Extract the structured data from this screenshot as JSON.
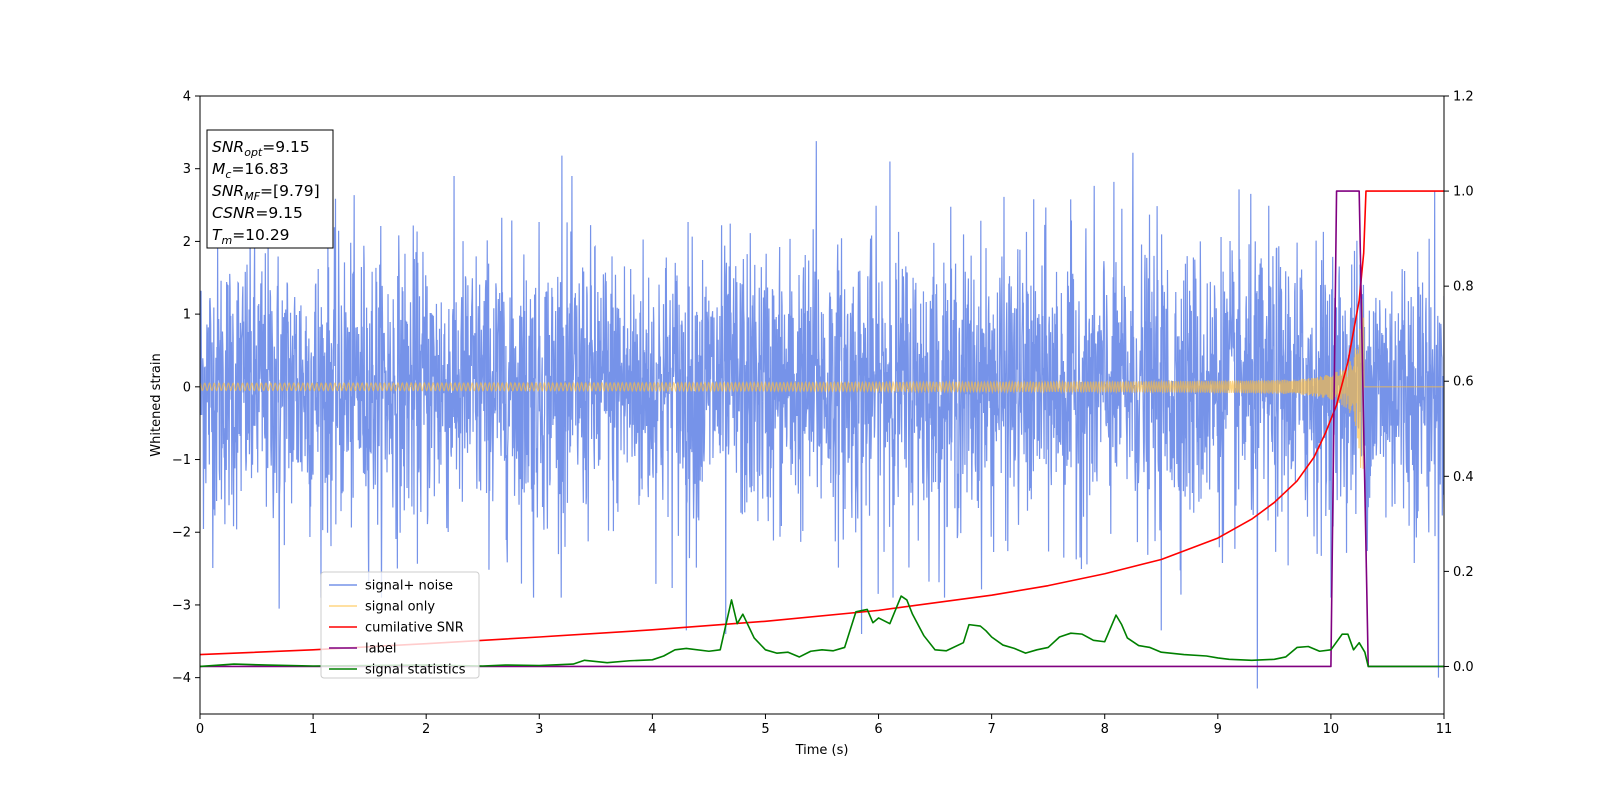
{
  "chart_data": {
    "type": "line",
    "xlabel": "Time (s)",
    "ylabel": "Whitened strain",
    "xlim": [
      0,
      11
    ],
    "ylim": [
      -4.5,
      4
    ],
    "y2lim": [
      -0.1,
      1.2
    ],
    "xticks": [
      "0",
      "1",
      "2",
      "3",
      "4",
      "5",
      "6",
      "7",
      "8",
      "9",
      "10",
      "11"
    ],
    "yticks": [
      "−4",
      "−3",
      "−2",
      "−1",
      "0",
      "1",
      "2",
      "3",
      "4"
    ],
    "y2ticks": [
      "0.0",
      "0.2",
      "0.4",
      "0.6",
      "0.8",
      "1.0",
      "1.2"
    ],
    "grid": false,
    "legend_position": "lower-left",
    "annotation": {
      "lines": [
        {
          "label": "SNR",
          "sub": "opt",
          "value": "=9.15"
        },
        {
          "label": "M",
          "sub": "c",
          "value": "=16.83"
        },
        {
          "label": "SNR",
          "sub": "MF",
          "value": "=[9.79]"
        },
        {
          "label": "CSNR",
          "sub": "",
          "value": "=9.15"
        },
        {
          "label": "T",
          "sub": "m",
          "value": "=10.29"
        }
      ]
    },
    "series": [
      {
        "name": "signal+ noise",
        "axis": "left",
        "color": "#4169e1",
        "kind": "noise",
        "sigma": 0.95,
        "x_range": [
          0,
          11
        ],
        "peaks": [
          [
            5.45,
            3.38
          ],
          [
            3.2,
            3.18
          ],
          [
            6.1,
            3.1
          ],
          [
            8.25,
            3.22
          ],
          [
            10.95,
            3.1
          ],
          [
            9.35,
            -4.15
          ],
          [
            10.95,
            -4.0
          ],
          [
            4.3,
            -3.35
          ],
          [
            8.5,
            -3.35
          ],
          [
            5.85,
            -3.4
          ],
          [
            0.7,
            -3.05
          ],
          [
            4.65,
            -3.4
          ],
          [
            2.95,
            -2.9
          ]
        ]
      },
      {
        "name": "signal only",
        "axis": "left",
        "color": "#ffbf3f",
        "kind": "chirp",
        "amplitude": 0.05,
        "merger": 10.29,
        "peak_amplitude": 1.4,
        "x_range": [
          0,
          11
        ]
      },
      {
        "name": "cumilative SNR",
        "axis": "right",
        "color": "#ff0000",
        "x": [
          0,
          1,
          2,
          3,
          4,
          5,
          6,
          7,
          7.5,
          8,
          8.5,
          9,
          9.3,
          9.5,
          9.7,
          9.85,
          9.95,
          10.05,
          10.15,
          10.25,
          10.29,
          10.31,
          11
        ],
        "y": [
          0.025,
          0.035,
          0.048,
          0.062,
          0.077,
          0.095,
          0.118,
          0.15,
          0.17,
          0.195,
          0.225,
          0.27,
          0.31,
          0.345,
          0.39,
          0.44,
          0.49,
          0.55,
          0.64,
          0.77,
          0.87,
          1.0,
          1.0
        ]
      },
      {
        "name": "label",
        "axis": "right",
        "color": "#800080",
        "x": [
          0,
          10.0,
          10.05,
          10.25,
          10.33,
          11
        ],
        "y": [
          0.0,
          0.0,
          1.0,
          1.0,
          0.0,
          0.0
        ]
      },
      {
        "name": "signal statistics",
        "axis": "right",
        "color": "#008000",
        "x": [
          0,
          0.3,
          0.6,
          1.0,
          1.5,
          2.0,
          2.5,
          2.7,
          3.0,
          3.3,
          3.4,
          3.6,
          3.8,
          4.0,
          4.1,
          4.2,
          4.3,
          4.5,
          4.6,
          4.7,
          4.75,
          4.8,
          4.9,
          5.0,
          5.1,
          5.2,
          5.3,
          5.4,
          5.5,
          5.6,
          5.7,
          5.8,
          5.9,
          5.95,
          6.0,
          6.1,
          6.2,
          6.25,
          6.3,
          6.4,
          6.5,
          6.6,
          6.75,
          6.8,
          6.9,
          6.95,
          7.0,
          7.1,
          7.2,
          7.3,
          7.4,
          7.5,
          7.6,
          7.7,
          7.8,
          7.9,
          8.0,
          8.1,
          8.15,
          8.2,
          8.3,
          8.4,
          8.5,
          8.7,
          8.9,
          9.0,
          9.1,
          9.3,
          9.5,
          9.6,
          9.7,
          9.8,
          9.9,
          10.0,
          10.1,
          10.15,
          10.2,
          10.25,
          10.3,
          10.33,
          10.5,
          11.0
        ],
        "y": [
          0.0,
          0.005,
          0.003,
          0.001,
          0.002,
          0.003,
          0.001,
          0.003,
          0.002,
          0.005,
          0.013,
          0.008,
          0.012,
          0.014,
          0.022,
          0.035,
          0.038,
          0.032,
          0.035,
          0.14,
          0.09,
          0.11,
          0.06,
          0.035,
          0.028,
          0.03,
          0.02,
          0.032,
          0.035,
          0.033,
          0.04,
          0.115,
          0.12,
          0.092,
          0.102,
          0.09,
          0.148,
          0.14,
          0.11,
          0.065,
          0.035,
          0.033,
          0.05,
          0.088,
          0.085,
          0.075,
          0.062,
          0.045,
          0.038,
          0.028,
          0.035,
          0.04,
          0.062,
          0.07,
          0.068,
          0.055,
          0.052,
          0.108,
          0.088,
          0.06,
          0.044,
          0.04,
          0.03,
          0.025,
          0.022,
          0.018,
          0.015,
          0.013,
          0.015,
          0.02,
          0.04,
          0.042,
          0.032,
          0.035,
          0.068,
          0.068,
          0.035,
          0.05,
          0.03,
          0.0,
          0.0,
          0.0
        ]
      }
    ]
  }
}
